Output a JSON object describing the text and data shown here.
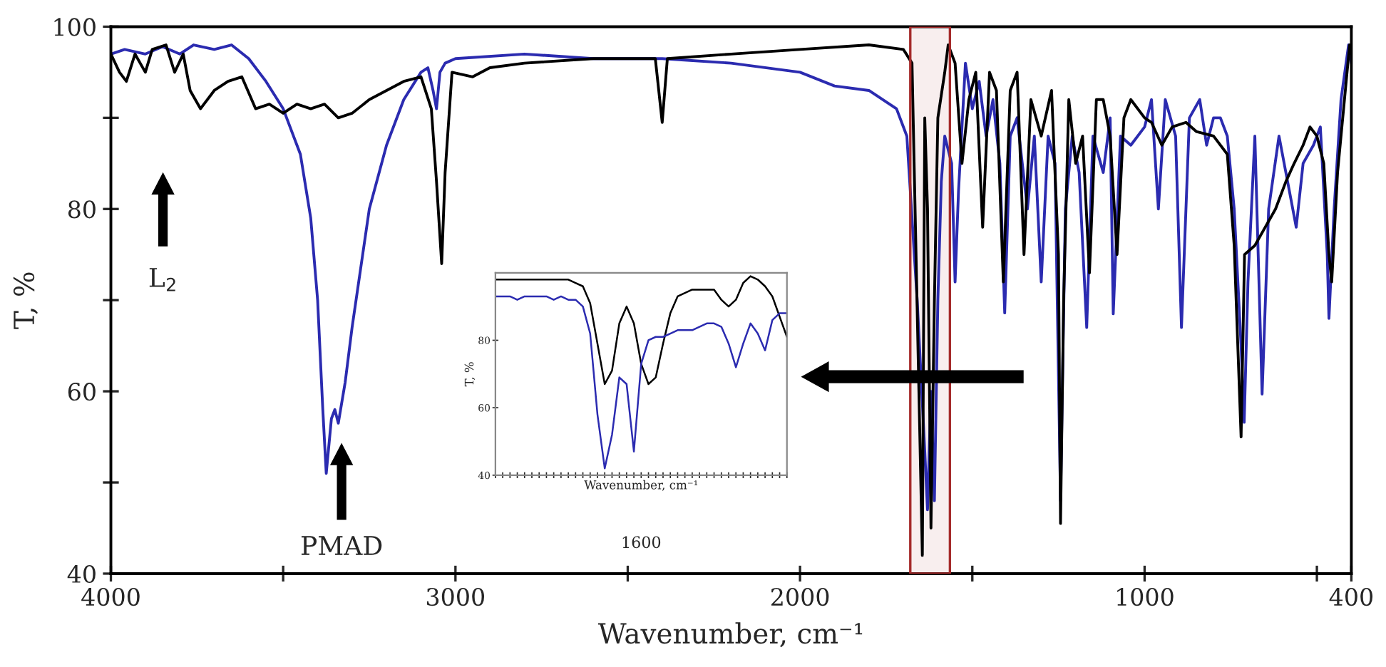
{
  "chart_data": [
    {
      "type": "line",
      "xlabel": "Wavenumber, cm⁻¹",
      "ylabel": "T, %",
      "xlim": [
        4000,
        400
      ],
      "ylim": [
        40,
        100
      ],
      "xticks": [
        4000,
        {
          "value": 3500,
          "label": null
        },
        3000,
        {
          "value": 2500,
          "label": null
        },
        2000,
        {
          "value": 1500,
          "label": null
        },
        1000,
        {
          "value": 500,
          "label": null
        },
        400
      ],
      "yticks": [
        40,
        {
          "value": 50,
          "label": null
        },
        60,
        {
          "value": 70,
          "label": null
        },
        80,
        {
          "value": 90,
          "label": null
        },
        100
      ],
      "grid": false,
      "line_style": "solid",
      "marker": "none",
      "bands": [
        {
          "axis": "x",
          "from": 1680,
          "to": 1565,
          "color": "#a52a2a"
        }
      ],
      "annotations": [
        "L$_{2}$",
        "PMAD"
      ],
      "series": [
        {
          "color": "#2b2bb0",
          "x": [
            4000,
            3960,
            3900,
            3850,
            3800,
            3760,
            3700,
            3650,
            3600,
            3550,
            3500,
            3450,
            3420,
            3400,
            3385,
            3375,
            3360,
            3350,
            3340,
            3320,
            3300,
            3250,
            3200,
            3150,
            3100,
            3080,
            3065,
            3055,
            3045,
            3030,
            3000,
            2800,
            2600,
            2400,
            2200,
            2000,
            1900,
            1800,
            1720,
            1690,
            1660,
            1640,
            1630,
            1620,
            1610,
            1600,
            1590,
            1580,
            1560,
            1550,
            1540,
            1520,
            1500,
            1480,
            1460,
            1440,
            1420,
            1406,
            1390,
            1370,
            1340,
            1320,
            1300,
            1280,
            1260,
            1244,
            1230,
            1210,
            1190,
            1168,
            1150,
            1120,
            1100,
            1091,
            1070,
            1040,
            1000,
            980,
            960,
            940,
            910,
            893,
            870,
            840,
            820,
            800,
            780,
            760,
            740,
            720,
            711,
            700,
            680,
            659,
            640,
            610,
            580,
            560,
            540,
            510,
            490,
            470,
            465,
            450,
            430,
            408,
            400
          ],
          "values": [
            97,
            97.5,
            97,
            97.8,
            97,
            98,
            97.5,
            98,
            96.5,
            94,
            91,
            86,
            79,
            70,
            58,
            51,
            57,
            58,
            56.5,
            61,
            67,
            80,
            87,
            92,
            95,
            95.5,
            93,
            91,
            95,
            96,
            96.5,
            97,
            96.5,
            96.5,
            96,
            95,
            93.5,
            93,
            91,
            88,
            70,
            55,
            47,
            60,
            48,
            70,
            83,
            88,
            85,
            72,
            82,
            96,
            91,
            94,
            88,
            92,
            85,
            68.6,
            88,
            90,
            80,
            88,
            72,
            88,
            85,
            48,
            80,
            88,
            84,
            67,
            88,
            84,
            90,
            68.5,
            88,
            87,
            89,
            92,
            80,
            92,
            88,
            67,
            90,
            92,
            87,
            90,
            90,
            88,
            80,
            65,
            56.6,
            72,
            88,
            59.7,
            80,
            88,
            82,
            78,
            85,
            87,
            89,
            75,
            68,
            80,
            92,
            98,
            96
          ]
        },
        {
          "color": "#000000",
          "x": [
            4000,
            3975,
            3955,
            3930,
            3900,
            3880,
            3840,
            3815,
            3790,
            3770,
            3740,
            3700,
            3660,
            3620,
            3580,
            3540,
            3500,
            3460,
            3420,
            3380,
            3340,
            3300,
            3250,
            3200,
            3150,
            3100,
            3070,
            3055,
            3040,
            3030,
            3010,
            2950,
            2900,
            2800,
            2600,
            2420,
            2400,
            2385,
            2200,
            2000,
            1800,
            1700,
            1675,
            1655,
            1645,
            1638,
            1630,
            1620,
            1610,
            1600,
            1580,
            1570,
            1550,
            1530,
            1510,
            1490,
            1470,
            1450,
            1430,
            1410,
            1390,
            1370,
            1350,
            1330,
            1300,
            1270,
            1250,
            1244,
            1235,
            1220,
            1200,
            1180,
            1160,
            1140,
            1120,
            1100,
            1080,
            1060,
            1040,
            1000,
            980,
            950,
            920,
            880,
            850,
            800,
            760,
            740,
            720,
            710,
            680,
            650,
            620,
            590,
            566,
            540,
            520,
            500,
            480,
            465,
            457,
            440,
            420,
            405,
            400
          ],
          "values": [
            97,
            95,
            94,
            97,
            95,
            97.5,
            98,
            95,
            97,
            93,
            91,
            93,
            94,
            94.5,
            91,
            91.5,
            90.5,
            91.5,
            91,
            91.5,
            90,
            90.5,
            92,
            93,
            94,
            94.5,
            91,
            83,
            74,
            84,
            95,
            94.5,
            95.5,
            96,
            96.5,
            96.5,
            89.5,
            96.5,
            97,
            97.5,
            98,
            97.5,
            96,
            60,
            42,
            90,
            80,
            45,
            70,
            90,
            95,
            98,
            96,
            85,
            92,
            95,
            78,
            95,
            93,
            72,
            93,
            95,
            75,
            92,
            88,
            93,
            75,
            45.5,
            70,
            92,
            85,
            88,
            73,
            92,
            92,
            88,
            75,
            90,
            92,
            90,
            89.5,
            87,
            89,
            89.5,
            88.5,
            88,
            86,
            76,
            55,
            75,
            76,
            78,
            80,
            83,
            85,
            87,
            89,
            88,
            85,
            75,
            72,
            84,
            92,
            98,
            97
          ]
        }
      ]
    },
    {
      "type": "line",
      "ylim": [
        40,
        100
      ],
      "yticks": [
        40,
        60,
        80
      ],
      "xlabel": "Wavenumber, cm⁻¹",
      "ylabel": "T, %",
      "categories": [
        null,
        null,
        null,
        null,
        null,
        null,
        null,
        null,
        null,
        null,
        null,
        null,
        null,
        null,
        null,
        null,
        null,
        null,
        null,
        null,
        null,
        null,
        null,
        null,
        null,
        null,
        null,
        null,
        null,
        null,
        null,
        null,
        null,
        null,
        null,
        null,
        null,
        null,
        null,
        null,
        null
      ],
      "annotations": [
        "1600"
      ],
      "grid": false,
      "series": [
        {
          "color": "#000000",
          "line_style": "solid",
          "values": [
            98,
            98,
            98,
            98,
            98,
            98,
            98,
            98,
            98,
            98,
            98,
            97,
            96,
            91,
            79,
            67,
            71,
            85,
            90,
            85,
            73,
            67,
            69,
            79,
            88,
            93,
            94,
            95,
            95,
            95,
            95,
            92,
            90,
            92,
            97,
            99,
            98,
            96,
            93,
            87,
            81
          ]
        },
        {
          "color": "#2b2bb0",
          "line_style": "solid",
          "values": [
            93,
            93,
            93,
            92,
            93,
            93,
            93,
            93,
            92,
            93,
            92,
            92,
            90,
            82,
            58,
            42,
            52,
            69,
            67,
            47,
            73,
            80,
            81,
            81,
            82,
            83,
            83,
            83,
            84,
            85,
            85,
            84,
            79,
            72,
            79,
            85,
            82,
            77,
            86,
            88,
            88
          ]
        }
      ]
    }
  ]
}
